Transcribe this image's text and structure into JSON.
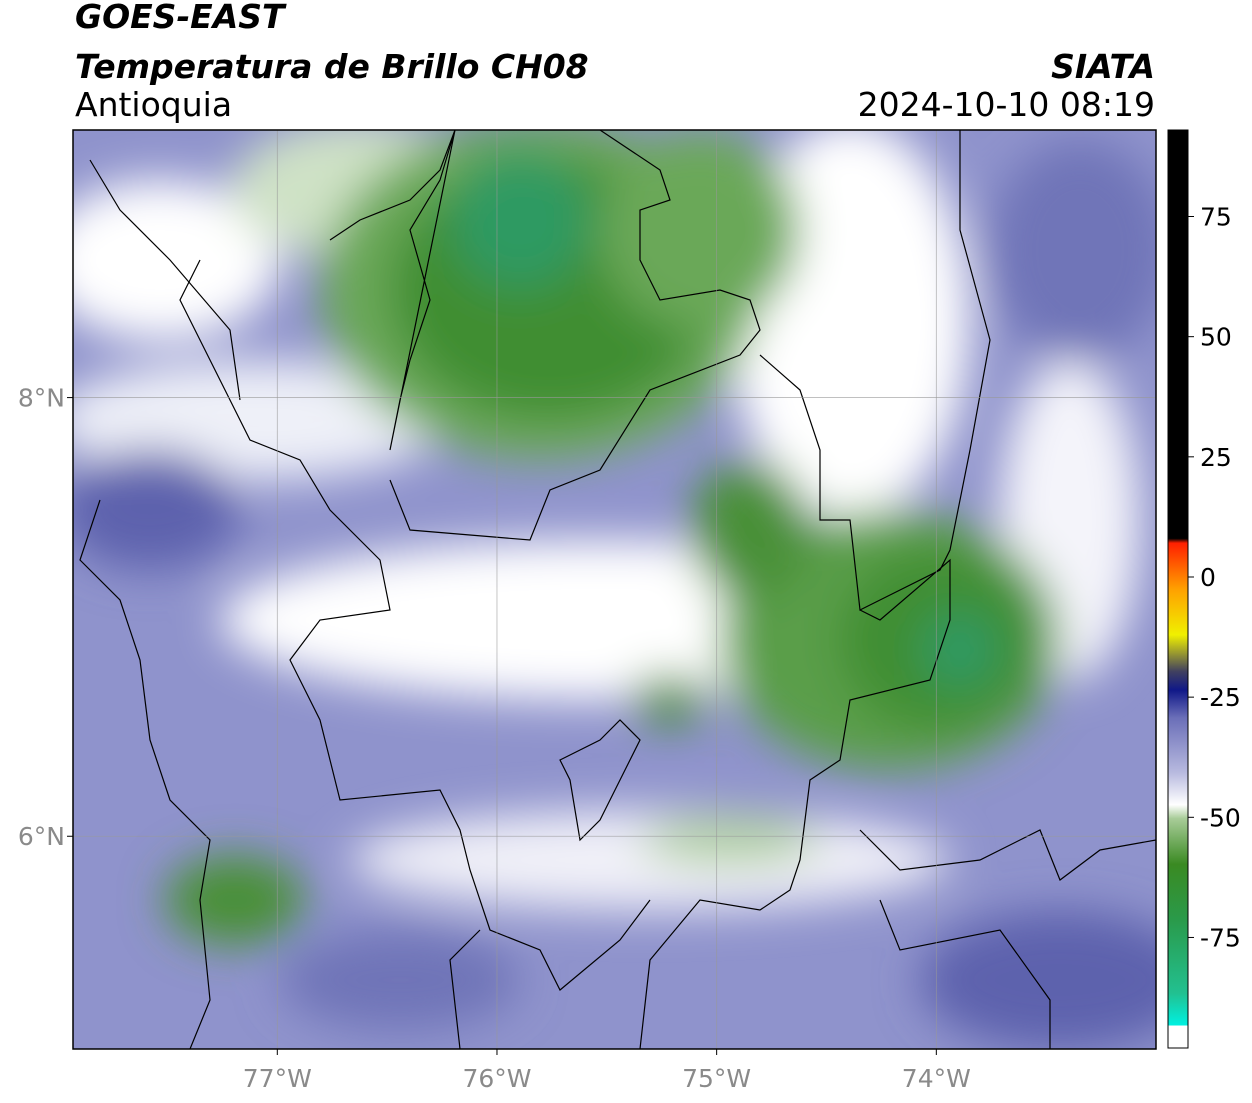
{
  "header": {
    "title": "GOES-EAST",
    "subtitle": "Temperatura de Brillo CH08",
    "region": "Antioquia",
    "source": "SIATA",
    "datetime": "2024-10-10 08:19"
  },
  "map": {
    "xlim": [
      -77.93,
      -73.0
    ],
    "ylim": [
      5.03,
      9.22
    ],
    "xticks": [
      {
        "value": -77,
        "label": "77°W"
      },
      {
        "value": -76,
        "label": "76°W"
      },
      {
        "value": -75,
        "label": "75°W"
      },
      {
        "value": -74,
        "label": "74°W"
      }
    ],
    "yticks": [
      {
        "value": 8,
        "label": "8°N"
      },
      {
        "value": 6,
        "label": "6°N"
      }
    ],
    "grid": true
  },
  "colorbar": {
    "clim": [
      -98,
      93
    ],
    "ticks": [
      75,
      50,
      25,
      0,
      -25,
      -50,
      -75
    ]
  }
}
